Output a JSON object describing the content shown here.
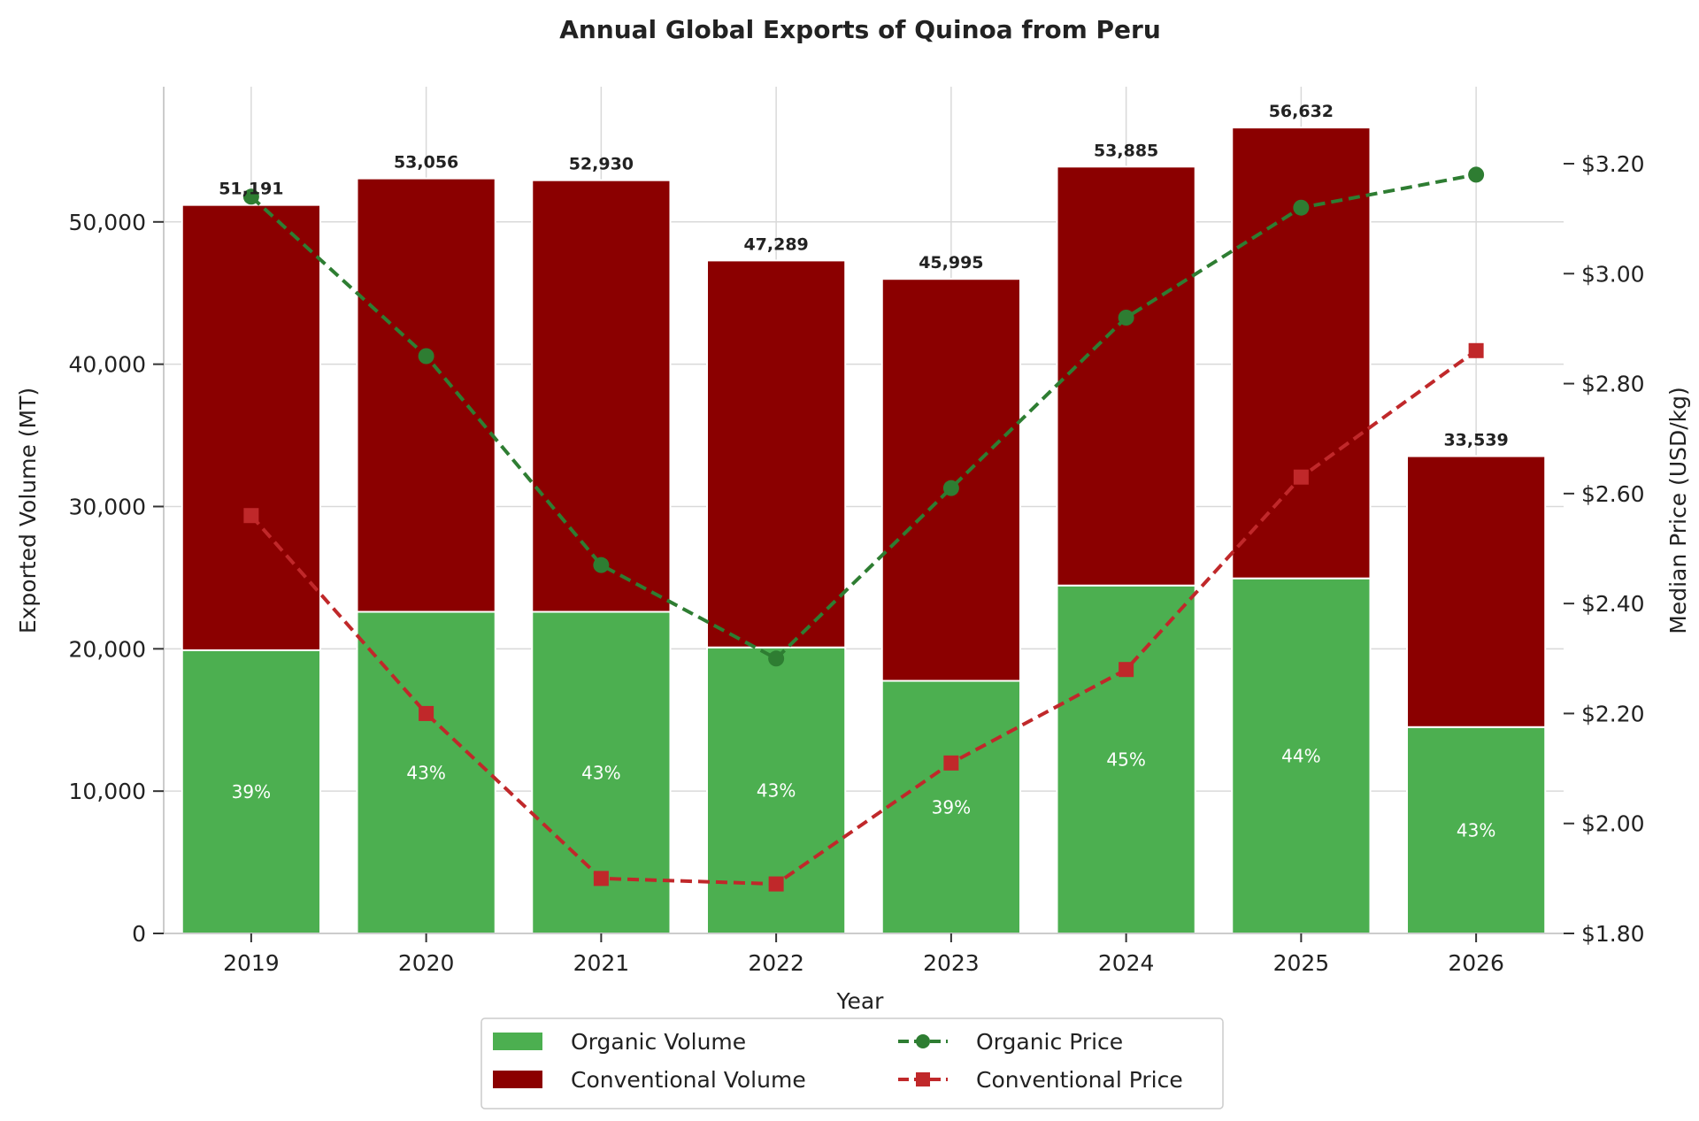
{
  "chart_data": {
    "type": "bar",
    "title": "Annual Global Exports of Quinoa from Peru",
    "xlabel": "Year",
    "ylabel": "Exported Volume (MT)",
    "ylabel_right": "Median Price (USD/kg)",
    "categories": [
      "2019",
      "2020",
      "2021",
      "2022",
      "2023",
      "2024",
      "2025",
      "2026"
    ],
    "ylim": [
      0,
      59500
    ],
    "ylim_right": [
      1.8,
      3.34
    ],
    "yticks": [
      0,
      10000,
      20000,
      30000,
      40000,
      50000
    ],
    "ytick_labels": [
      "0",
      "10,000",
      "20,000",
      "30,000",
      "40,000",
      "50,000"
    ],
    "yticks_right": [
      1.8,
      2.0,
      2.2,
      2.4,
      2.6,
      2.8,
      3.0,
      3.2
    ],
    "ytick_labels_right": [
      "$1.80",
      "$2.00",
      "$2.20",
      "$2.40",
      "$2.60",
      "$2.80",
      "$3.00",
      "$3.20"
    ],
    "grid": true,
    "legend_position": "bottom-center",
    "totals": [
      51191,
      53056,
      52930,
      47289,
      45995,
      53885,
      56632,
      33539
    ],
    "total_labels": [
      "51,191",
      "53,056",
      "52,930",
      "47,289",
      "45,995",
      "53,885",
      "56,632",
      "33,539"
    ],
    "share_labels": [
      "39%",
      "43%",
      "43%",
      "43%",
      "39%",
      "45%",
      "44%",
      "43%"
    ],
    "series": [
      {
        "name": "Organic Volume",
        "kind": "bar",
        "axis": "left",
        "color": "#4caf50",
        "values": [
          19900,
          22600,
          22600,
          20100,
          17750,
          24450,
          24950,
          14500
        ]
      },
      {
        "name": "Conventional Volume",
        "kind": "bar",
        "axis": "left",
        "color": "#8b0000",
        "values": [
          31291,
          30456,
          30330,
          27189,
          28245,
          29435,
          31682,
          19039
        ]
      },
      {
        "name": "Organic Price",
        "kind": "line",
        "axis": "right",
        "color": "#2e7d32",
        "marker": "circle",
        "values": [
          3.14,
          2.85,
          2.47,
          2.3,
          2.61,
          2.92,
          3.12,
          3.18
        ]
      },
      {
        "name": "Conventional Price",
        "kind": "line",
        "axis": "right",
        "color": "#c0282a",
        "marker": "square",
        "values": [
          2.56,
          2.2,
          1.9,
          1.89,
          2.11,
          2.28,
          2.63,
          2.86
        ]
      }
    ]
  }
}
